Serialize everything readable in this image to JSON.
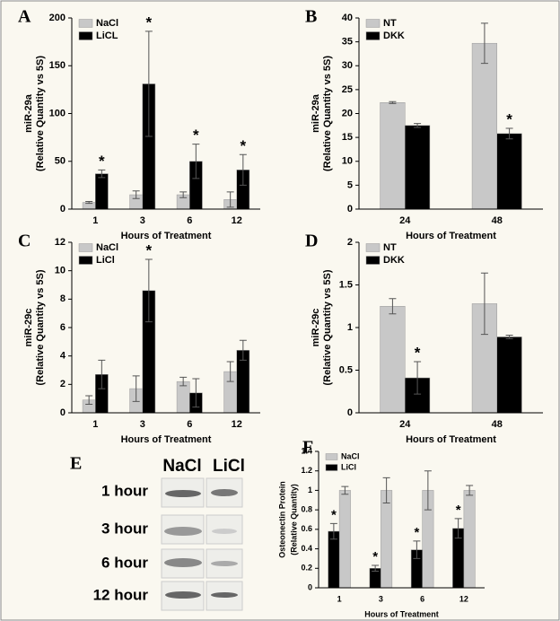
{
  "chart_data": [
    {
      "type": "bar",
      "panel_label": "A",
      "ylabel": [
        "miR-29a",
        "(Relative Quantity vs 5S)"
      ],
      "xlabel": "Hours of Treatment",
      "categories": [
        "1",
        "3",
        "6",
        "12"
      ],
      "series": [
        {
          "name": "NaCl",
          "color": "#c8c8c8",
          "values": [
            7,
            15,
            15,
            10
          ],
          "errors": [
            1,
            4,
            3,
            8
          ],
          "significance": [
            null,
            null,
            null,
            null
          ]
        },
        {
          "name": "LiCL",
          "color": "#000000",
          "values": [
            37,
            131,
            50,
            41
          ],
          "errors": [
            4,
            55,
            18,
            16
          ],
          "significance": [
            "*",
            "*",
            "*",
            "*"
          ]
        }
      ],
      "ylim": [
        0,
        200
      ],
      "yticks": [
        0,
        50,
        100,
        150,
        200
      ],
      "legend": "upper left"
    },
    {
      "type": "bar",
      "panel_label": "B",
      "ylabel": [
        "miR-29a",
        "(Relative Quantity vs 5S)"
      ],
      "xlabel": "Hours of Treatment",
      "categories": [
        "24",
        "48"
      ],
      "series": [
        {
          "name": "NT",
          "color": "#c8c8c8",
          "values": [
            22.3,
            34.7
          ],
          "errors": [
            0.2,
            4.2
          ],
          "significance": [
            null,
            null
          ]
        },
        {
          "name": "DKK",
          "color": "#000000",
          "values": [
            17.5,
            15.8
          ],
          "errors": [
            0.4,
            1.1
          ],
          "significance": [
            null,
            "*"
          ]
        }
      ],
      "ylim": [
        0,
        40
      ],
      "yticks": [
        0,
        5,
        10,
        15,
        20,
        25,
        30,
        35,
        40
      ],
      "legend": "upper left"
    },
    {
      "type": "bar",
      "panel_label": "C",
      "ylabel": [
        "miR-29c",
        "(Relative Quantity vs 5S)"
      ],
      "xlabel": "Hours of Treatment",
      "categories": [
        "1",
        "3",
        "6",
        "12"
      ],
      "series": [
        {
          "name": "NaCl",
          "color": "#c8c8c8",
          "values": [
            0.9,
            1.7,
            2.2,
            2.9
          ],
          "errors": [
            0.3,
            0.9,
            0.3,
            0.7
          ],
          "significance": [
            null,
            null,
            null,
            null
          ]
        },
        {
          "name": "LiCl",
          "color": "#000000",
          "values": [
            2.7,
            8.6,
            1.4,
            4.4
          ],
          "errors": [
            1.0,
            2.2,
            1.0,
            0.7
          ],
          "significance": [
            null,
            "*",
            null,
            null
          ]
        }
      ],
      "ylim": [
        0,
        12
      ],
      "yticks": [
        0,
        2,
        4,
        6,
        8,
        10,
        12
      ],
      "legend": "upper left"
    },
    {
      "type": "bar",
      "panel_label": "D",
      "ylabel": [
        "miR-29c",
        "(Relative Quantity vs 5S)"
      ],
      "xlabel": "Hours of Treatment",
      "categories": [
        "24",
        "48"
      ],
      "series": [
        {
          "name": "NT",
          "color": "#c8c8c8",
          "values": [
            1.25,
            1.28
          ],
          "errors": [
            0.09,
            0.36
          ],
          "significance": [
            null,
            null
          ]
        },
        {
          "name": "DKK",
          "color": "#000000",
          "values": [
            0.41,
            0.89
          ],
          "errors": [
            0.19,
            0.02
          ],
          "significance": [
            "*",
            null
          ]
        }
      ],
      "ylim": [
        0,
        2
      ],
      "yticks": [
        0,
        0.5,
        1,
        1.5,
        2
      ],
      "legend": "upper left"
    },
    {
      "type": "bar",
      "panel_label": "F",
      "ylabel": [
        "Osteonectin Protein",
        "(Relative Quantity)"
      ],
      "xlabel": "Hours of Treatment",
      "categories": [
        "1",
        "3",
        "6",
        "12"
      ],
      "series": [
        {
          "name": "NaCl",
          "color": "#c8c8c8",
          "values": [
            1,
            1,
            1,
            1
          ],
          "errors": [
            0.04,
            0.13,
            0.2,
            0.05
          ],
          "significance": [
            null,
            null,
            null,
            null
          ]
        },
        {
          "name": "LiCl",
          "color": "#000000",
          "values": [
            0.58,
            0.2,
            0.39,
            0.61
          ],
          "errors": [
            0.08,
            0.03,
            0.09,
            0.1
          ],
          "significance": [
            "*",
            "*",
            "*",
            "*"
          ]
        }
      ],
      "ylim": [
        0,
        1.4
      ],
      "yticks": [
        0,
        0.2,
        0.4,
        0.6,
        0.8,
        1,
        1.2,
        1.4
      ],
      "legend": "upper left",
      "reverse_groups": true
    }
  ],
  "blot": {
    "panel_label": "E",
    "columns": [
      "NaCl",
      "LiCl"
    ],
    "rows": [
      "1 hour",
      "3 hour",
      "6 hour",
      "12 hour"
    ]
  }
}
